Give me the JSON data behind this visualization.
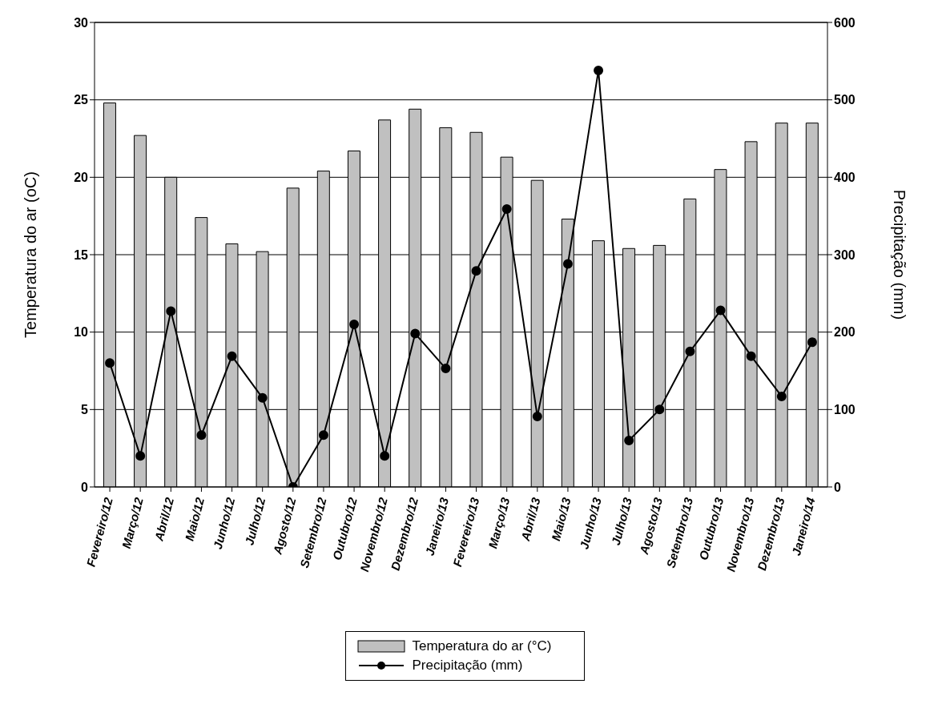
{
  "chart_data": {
    "type": "bar",
    "ylabel": "Temperatura do ar (oC)",
    "y2label": "Precipitação (mm)",
    "categories": [
      "Fevereiro/12",
      "Março/12",
      "Abril/12",
      "Maio/12",
      "Junho/12",
      "Julho/12",
      "Agosto/12",
      "Setembro/12",
      "Outubro/12",
      "Novembro/12",
      "Dezembro/12",
      "Janeiro/13",
      "Fevereiro/13",
      "Março/13",
      "Abril/13",
      "Maio/13",
      "Junho/13",
      "Julho/13",
      "Agosto/13",
      "Setembro/13",
      "Outubro/13",
      "Novembro/13",
      "Dezembro/13",
      "Janeiro/14"
    ],
    "series": [
      {
        "name": "Temperatura do ar (°C)",
        "color": "#c0c0c0",
        "values": [
          24.8,
          22.7,
          20.0,
          17.4,
          15.7,
          15.2,
          19.3,
          20.4,
          21.7,
          23.7,
          24.4,
          23.2,
          22.9,
          21.3,
          19.8,
          17.3,
          15.9,
          15.4,
          15.6,
          18.6,
          20.5,
          22.3,
          23.5,
          23.5
        ]
      },
      {
        "name": "Precipitação (mm)",
        "type": "line",
        "axis": "y2",
        "color": "#000000",
        "values": [
          160,
          40,
          227,
          67,
          169,
          115,
          0,
          67,
          210,
          40,
          198,
          153,
          279,
          359,
          91,
          288,
          538,
          60,
          100,
          175,
          228,
          169,
          117,
          187
        ]
      }
    ],
    "ylim": [
      0,
      30
    ],
    "yticks": [
      0,
      5,
      10,
      15,
      20,
      25,
      30
    ],
    "y2lim": [
      0,
      600
    ],
    "y2ticks": [
      0,
      100,
      200,
      300,
      400,
      500,
      600
    ],
    "grid": "y",
    "legend": "bottom",
    "marker": "circle",
    "line_style": "solid"
  }
}
